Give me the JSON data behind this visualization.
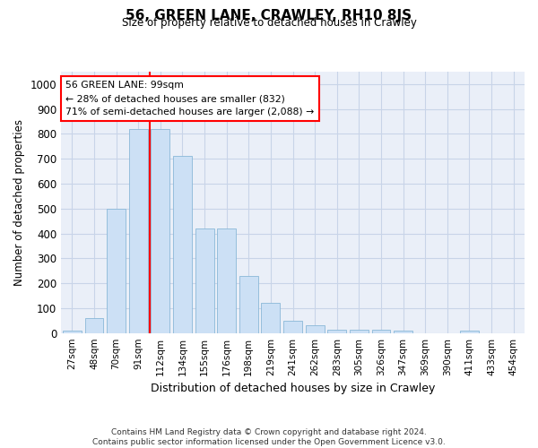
{
  "title": "56, GREEN LANE, CRAWLEY, RH10 8JS",
  "subtitle": "Size of property relative to detached houses in Crawley",
  "xlabel": "Distribution of detached houses by size in Crawley",
  "ylabel": "Number of detached properties",
  "footer_line1": "Contains HM Land Registry data © Crown copyright and database right 2024.",
  "footer_line2": "Contains public sector information licensed under the Open Government Licence v3.0.",
  "categories": [
    "27sqm",
    "48sqm",
    "70sqm",
    "91sqm",
    "112sqm",
    "134sqm",
    "155sqm",
    "176sqm",
    "198sqm",
    "219sqm",
    "241sqm",
    "262sqm",
    "283sqm",
    "305sqm",
    "326sqm",
    "347sqm",
    "369sqm",
    "390sqm",
    "411sqm",
    "433sqm",
    "454sqm"
  ],
  "values": [
    8,
    60,
    500,
    820,
    820,
    710,
    420,
    420,
    230,
    120,
    50,
    32,
    12,
    12,
    12,
    8,
    0,
    0,
    8,
    0,
    0
  ],
  "bar_color": "#cce0f5",
  "bar_edge_color": "#8ab8d8",
  "grid_color": "#c8d4e8",
  "background_color": "#eaeff8",
  "property_line_color": "red",
  "annotation_text": "56 GREEN LANE: 99sqm\n← 28% of detached houses are smaller (832)\n71% of semi-detached houses are larger (2,088) →",
  "annotation_box_color": "white",
  "annotation_box_edge": "red",
  "ylim": [
    0,
    1050
  ],
  "yticks": [
    0,
    100,
    200,
    300,
    400,
    500,
    600,
    700,
    800,
    900,
    1000
  ]
}
